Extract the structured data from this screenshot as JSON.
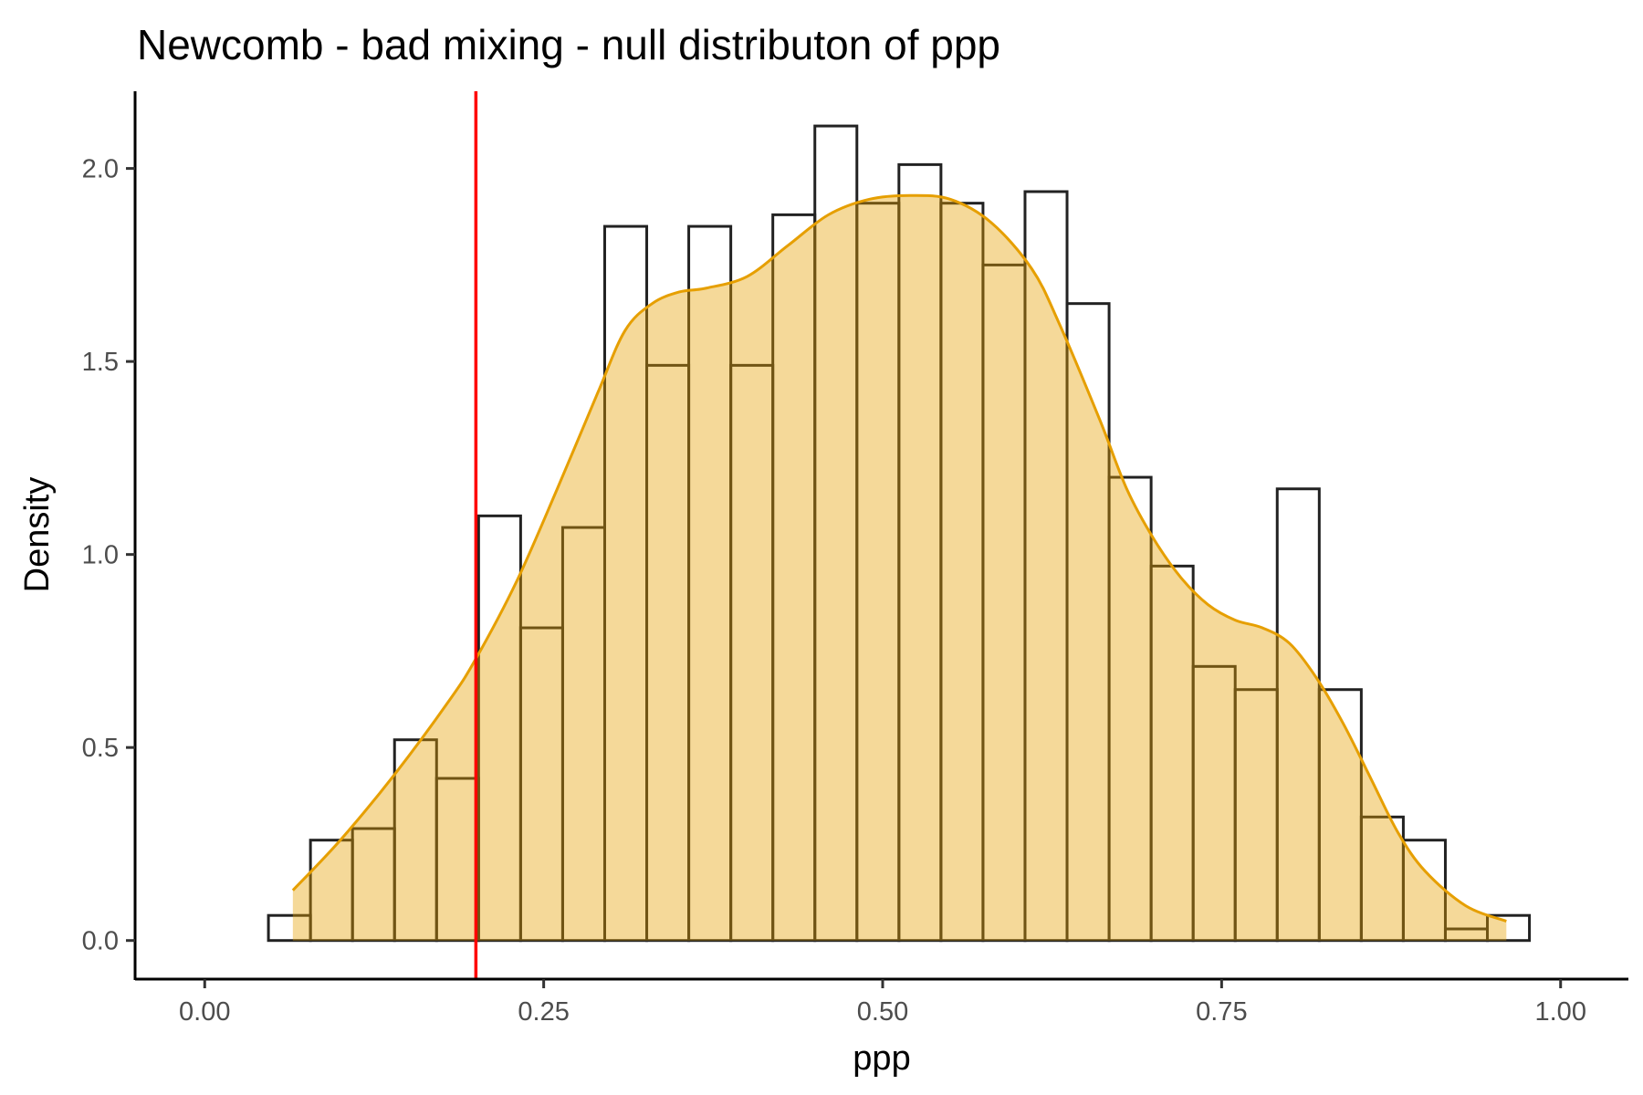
{
  "chart_data": {
    "type": "histogram",
    "title": "Newcomb - bad mixing - null distributon of ppp",
    "xlabel": "ppp",
    "ylabel": "Density",
    "xlim": [
      -0.05,
      1.05
    ],
    "ylim": [
      -0.1,
      2.2
    ],
    "x_ticks": [
      0.0,
      0.25,
      0.5,
      0.75,
      1.0
    ],
    "x_tick_labels": [
      "0.00",
      "0.25",
      "0.50",
      "0.75",
      "1.00"
    ],
    "y_ticks": [
      0.0,
      0.5,
      1.0,
      1.5,
      2.0
    ],
    "y_tick_labels": [
      "0.0",
      "0.5",
      "1.0",
      "1.5",
      "2.0"
    ],
    "grid": false,
    "histogram": {
      "bin_edges": [
        0.047,
        0.078,
        0.109,
        0.14,
        0.171,
        0.202,
        0.233,
        0.264,
        0.295,
        0.326,
        0.357,
        0.388,
        0.419,
        0.45,
        0.481,
        0.512,
        0.543,
        0.574,
        0.605,
        0.636,
        0.667,
        0.698,
        0.729,
        0.76,
        0.791,
        0.822,
        0.853,
        0.884,
        0.915,
        0.946,
        0.977
      ],
      "density": [
        0.065,
        0.26,
        0.29,
        0.52,
        0.42,
        1.1,
        0.81,
        1.07,
        1.85,
        1.49,
        1.85,
        1.49,
        1.88,
        2.11,
        1.91,
        2.01,
        1.91,
        1.75,
        1.94,
        1.65,
        1.2,
        0.97,
        0.71,
        0.65,
        1.17,
        0.65,
        0.32,
        0.26,
        0.03,
        0.065
      ]
    },
    "density_curve": {
      "color": "#E69F00",
      "x": [
        0.065,
        0.1,
        0.14,
        0.18,
        0.2,
        0.23,
        0.26,
        0.29,
        0.31,
        0.33,
        0.35,
        0.37,
        0.4,
        0.43,
        0.46,
        0.49,
        0.52,
        0.55,
        0.58,
        0.61,
        0.63,
        0.66,
        0.68,
        0.7,
        0.72,
        0.74,
        0.76,
        0.78,
        0.8,
        0.82,
        0.84,
        0.86,
        0.88,
        0.9,
        0.93,
        0.96
      ],
      "y": [
        0.13,
        0.26,
        0.43,
        0.62,
        0.73,
        0.93,
        1.17,
        1.42,
        1.58,
        1.65,
        1.68,
        1.69,
        1.72,
        1.8,
        1.88,
        1.92,
        1.93,
        1.92,
        1.86,
        1.74,
        1.6,
        1.35,
        1.17,
        1.04,
        0.94,
        0.87,
        0.83,
        0.81,
        0.77,
        0.68,
        0.56,
        0.42,
        0.28,
        0.18,
        0.09,
        0.05
      ]
    },
    "reference_line": {
      "x": 0.2,
      "color": "#FF0000"
    }
  }
}
